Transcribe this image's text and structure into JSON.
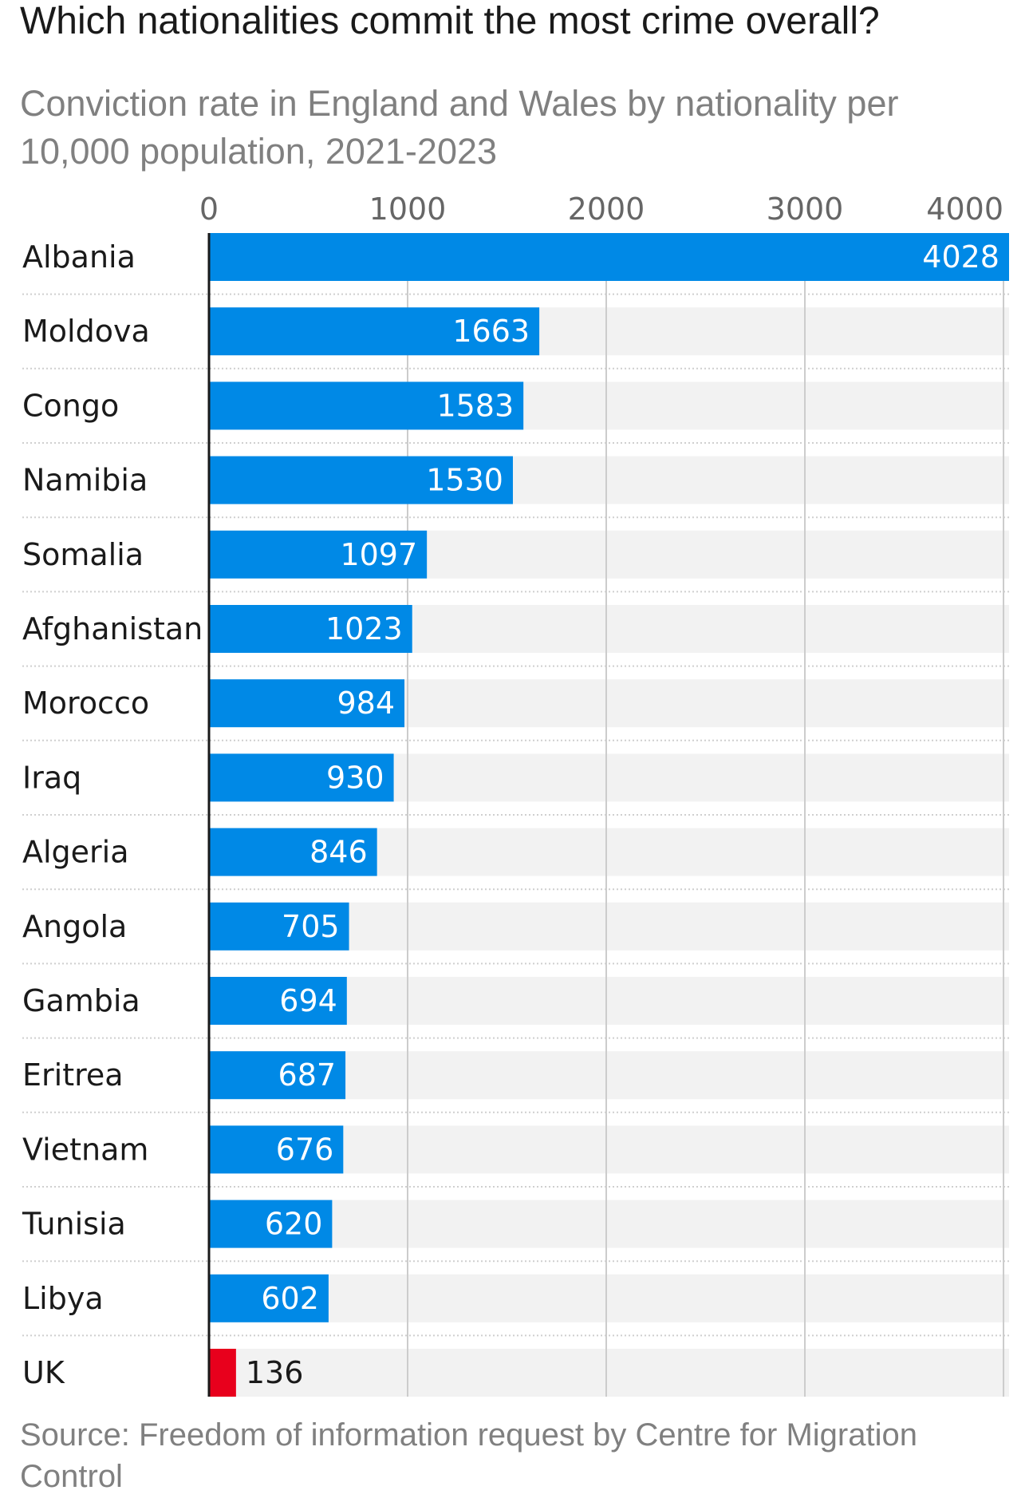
{
  "title": "Which nationalities commit the most crime overall?",
  "subtitle": "Conviction rate in England and Wales by nationality per 10,000 population, 2021-2023",
  "source": "Source: Freedom of information request by Centre for Migration Control",
  "colors": {
    "bar": "#0089e6",
    "highlight": "#e8001c",
    "track": "#f2f2f2",
    "grid": "#cccccc",
    "separator": "#cfcfcf"
  },
  "chart_data": {
    "type": "bar",
    "orientation": "horizontal",
    "categories": [
      "Albania",
      "Moldova",
      "Congo",
      "Namibia",
      "Somalia",
      "Afghanistan",
      "Morocco",
      "Iraq",
      "Algeria",
      "Angola",
      "Gambia",
      "Eritrea",
      "Vietnam",
      "Tunisia",
      "Libya",
      "UK"
    ],
    "values": [
      4028,
      1663,
      1583,
      1530,
      1097,
      1023,
      984,
      930,
      846,
      705,
      694,
      687,
      676,
      620,
      602,
      136
    ],
    "highlight": [
      "UK"
    ],
    "xticks": [
      0,
      1000,
      2000,
      3000,
      4000
    ],
    "xlim": [
      0,
      4028
    ],
    "grid": true,
    "axis_position": "top"
  }
}
